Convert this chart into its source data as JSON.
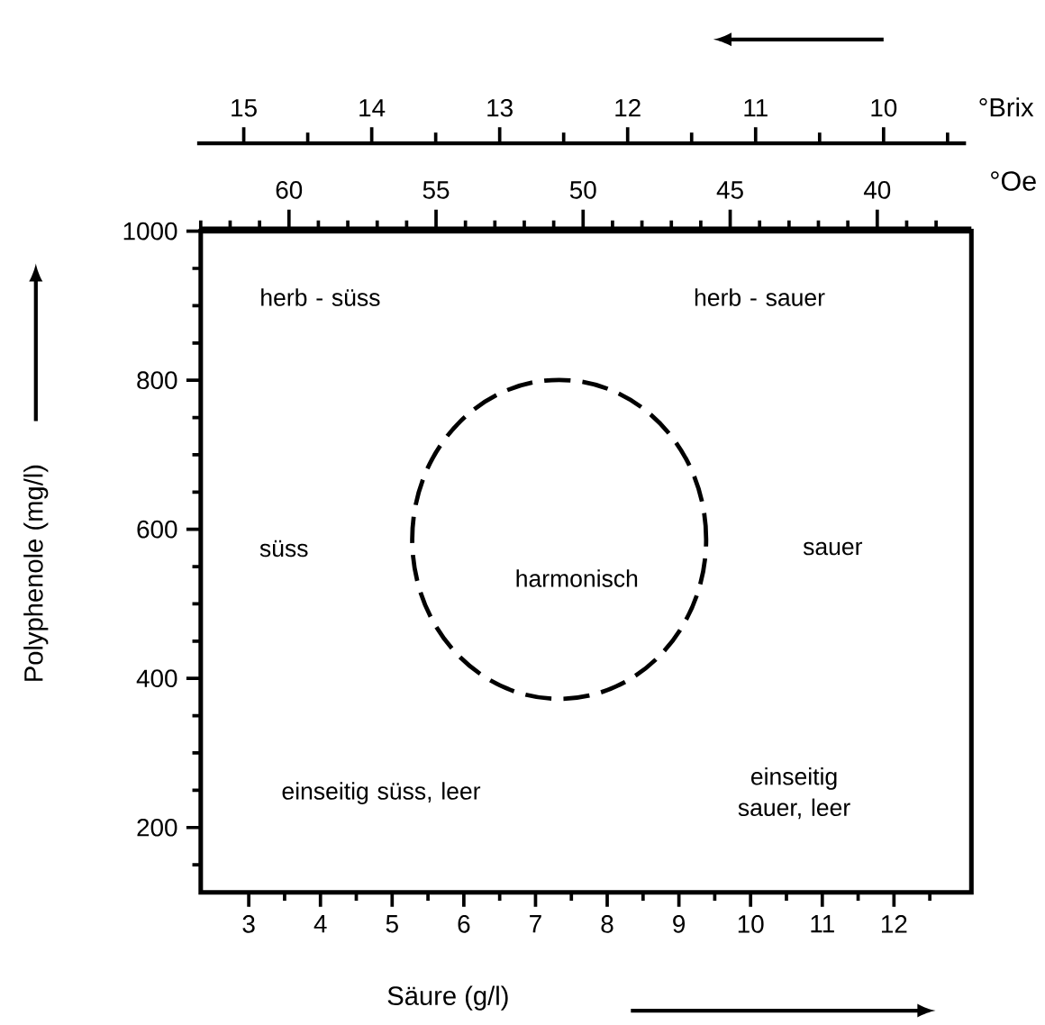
{
  "chart_data": {
    "type": "line",
    "xlabel": "Säure (g/l)",
    "ylabel": "Polyphenole (mg/l)",
    "xlim": [
      2.33,
      13.08
    ],
    "ylim": [
      113,
      1000
    ],
    "xticks": [
      3,
      {
        "value": 3.5,
        "label": null
      },
      4,
      {
        "value": 4.5,
        "label": null
      },
      5,
      {
        "value": 5.5,
        "label": null
      },
      6,
      {
        "value": 6.5,
        "label": null
      },
      7,
      {
        "value": 7.5,
        "label": null
      },
      8,
      {
        "value": 8.5,
        "label": null
      },
      9,
      {
        "value": 9.5,
        "label": null
      },
      10,
      {
        "value": 10.5,
        "label": null
      },
      11,
      {
        "value": 11.5,
        "label": null
      },
      12,
      {
        "value": 12.5,
        "label": null
      }
    ],
    "yticks": [
      {
        "value": 150,
        "label": null
      },
      200,
      {
        "value": 250,
        "label": null
      },
      {
        "value": 300,
        "label": null
      },
      {
        "value": 350,
        "label": null
      },
      400,
      {
        "value": 450,
        "label": null
      },
      {
        "value": 500,
        "label": null
      },
      {
        "value": 550,
        "label": null
      },
      600,
      {
        "value": 650,
        "label": null
      },
      {
        "value": 700,
        "label": null
      },
      {
        "value": 750,
        "label": null
      },
      800,
      {
        "value": 850,
        "label": null
      },
      {
        "value": 900,
        "label": null
      },
      {
        "value": 950,
        "label": null
      },
      1000
    ],
    "x2label": "°Oe",
    "x2lim": [
      63.0,
      36.8
    ],
    "x2ticks": [
      {
        "value": 63,
        "label": null
      },
      {
        "value": 62,
        "label": null
      },
      {
        "value": 61,
        "label": null
      },
      60,
      {
        "value": 59,
        "label": null
      },
      {
        "value": 58,
        "label": null
      },
      {
        "value": 57,
        "label": null
      },
      {
        "value": 56,
        "label": null
      },
      55,
      {
        "value": 54,
        "label": null
      },
      {
        "value": 53,
        "label": null
      },
      {
        "value": 52,
        "label": null
      },
      {
        "value": 51,
        "label": null
      },
      50,
      {
        "value": 49,
        "label": null
      },
      {
        "value": 48,
        "label": null
      },
      {
        "value": 47,
        "label": null
      },
      {
        "value": 46,
        "label": null
      },
      45,
      {
        "value": 44,
        "label": null
      },
      {
        "value": 43,
        "label": null
      },
      {
        "value": 42,
        "label": null
      },
      {
        "value": 41,
        "label": null
      },
      40,
      {
        "value": 39,
        "label": null
      },
      {
        "value": 38,
        "label": null
      }
    ],
    "annotations": [
      "herb - süss",
      "herb - sauer",
      "süss",
      "harmonisch",
      "sauer",
      "einseitig süss, leer",
      "einseitig sauer, leer",
      "15",
      "14",
      "13",
      "12",
      "11",
      "10",
      "°Brix"
    ]
  }
}
